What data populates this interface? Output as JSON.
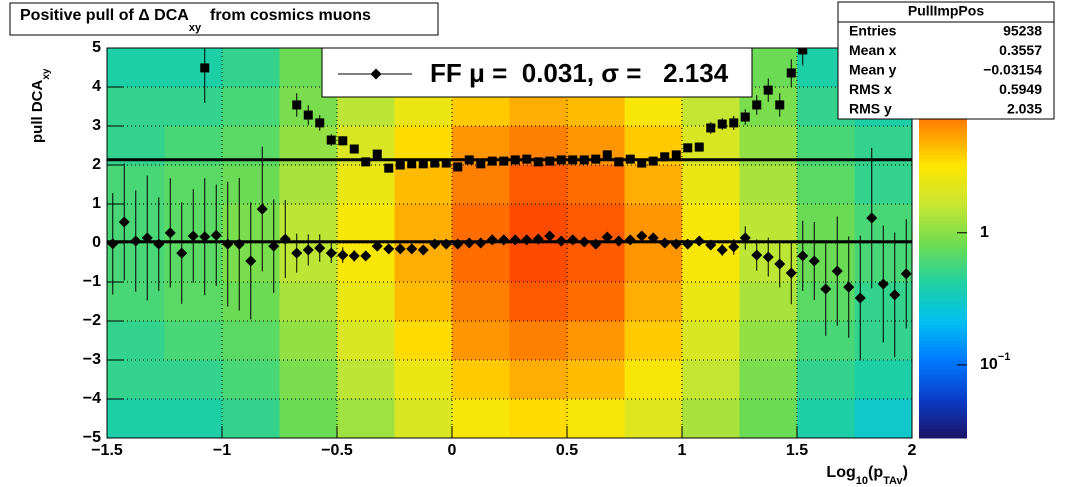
{
  "chart_data": {
    "type": "profile",
    "title": [
      "Positive pull of Δ DCA",
      "xy",
      "  from cosmics muons"
    ],
    "xlabel": [
      "Log",
      "10",
      "(p",
      "TAv",
      ")"
    ],
    "ylabel": [
      "pull DCA",
      "xy"
    ],
    "xlim": [
      -1.5,
      2
    ],
    "ylim": [
      -5,
      5
    ],
    "xticks": [
      {
        "value": -1.5,
        "label": "−1.5"
      },
      {
        "value": -1,
        "label": "−1"
      },
      {
        "value": -0.5,
        "label": "−0.5"
      },
      0,
      0.5,
      1,
      1.5,
      2
    ],
    "yticks": [
      {
        "value": -5,
        "label": "−5"
      },
      {
        "value": -4,
        "label": "−4"
      },
      {
        "value": -3,
        "label": "−3"
      },
      {
        "value": -2,
        "label": "−2"
      },
      {
        "value": -1,
        "label": "−1"
      },
      0,
      1,
      2,
      3,
      4,
      5
    ],
    "grid": true,
    "zlim": [
      0.028,
      25
    ],
    "zlog": true,
    "zticks": [
      {
        "value": 1,
        "label": "1"
      },
      {
        "value": 0.1,
        "label": "10",
        "exponent": "−1"
      }
    ],
    "palette": [
      "#1c1464",
      "#0a3cc8",
      "#0078ff",
      "#00c0f0",
      "#20d0a0",
      "#70dc50",
      "#c8e632",
      "#ffe600",
      "#ff8c00",
      "#ff2800",
      "#b40000"
    ],
    "heatmap": {
      "xbins": [
        -1.5,
        -1.25,
        -1,
        -0.75,
        -0.5,
        -0.25,
        0,
        0.25,
        0.5,
        0.75,
        1,
        1.25,
        1.5,
        1.75,
        2
      ],
      "ybins": [
        -5,
        -4,
        -3,
        -2,
        -1,
        0,
        1,
        2,
        3,
        4,
        5
      ],
      "z": [
        [
          0.4,
          0.4,
          0.5,
          0.8,
          1.2,
          2,
          3,
          3.5,
          3,
          2.2,
          1.3,
          0.8,
          0.4,
          0.3
        ],
        [
          0.5,
          0.5,
          0.6,
          0.9,
          1.5,
          2.5,
          4,
          5,
          4.5,
          3,
          1.6,
          0.9,
          0.5,
          0.4
        ],
        [
          0.5,
          0.6,
          0.7,
          1.1,
          2,
          3.5,
          6,
          7,
          6,
          4,
          2,
          1.1,
          0.6,
          0.5
        ],
        [
          0.6,
          0.7,
          0.8,
          1.3,
          2.5,
          4.5,
          7,
          9,
          8,
          5,
          2.5,
          1.3,
          0.7,
          0.5
        ],
        [
          0.6,
          0.7,
          0.9,
          1.5,
          3,
          5,
          8,
          10,
          9,
          6,
          3,
          1.5,
          0.8,
          0.6
        ],
        [
          0.6,
          0.7,
          0.9,
          1.5,
          3,
          5,
          8,
          10,
          9,
          6,
          3,
          1.5,
          0.8,
          0.6
        ],
        [
          0.6,
          0.7,
          0.8,
          1.3,
          2.5,
          4.5,
          7,
          9,
          8,
          5,
          2.5,
          1.3,
          0.7,
          0.5
        ],
        [
          0.5,
          0.6,
          0.7,
          1.1,
          2,
          3.5,
          6,
          7,
          6,
          4,
          2,
          1.1,
          0.6,
          0.5
        ],
        [
          0.5,
          0.5,
          0.6,
          0.9,
          1.5,
          2.5,
          4,
          5,
          4.5,
          3,
          1.6,
          0.9,
          0.5,
          0.4
        ],
        [
          0.4,
          0.4,
          0.5,
          0.8,
          1.2,
          2,
          3,
          3.5,
          3,
          2.2,
          1.3,
          0.8,
          0.4,
          0.3
        ]
      ]
    },
    "x": [
      -1.475,
      -1.425,
      -1.375,
      -1.325,
      -1.275,
      -1.225,
      -1.175,
      -1.125,
      -1.075,
      -1.025,
      -0.975,
      -0.925,
      -0.875,
      -0.825,
      -0.775,
      -0.725,
      -0.675,
      -0.625,
      -0.575,
      -0.525,
      -0.475,
      -0.425,
      -0.375,
      -0.325,
      -0.275,
      -0.225,
      -0.175,
      -0.125,
      -0.075,
      -0.025,
      0.025,
      0.075,
      0.125,
      0.175,
      0.225,
      0.275,
      0.325,
      0.375,
      0.425,
      0.475,
      0.525,
      0.575,
      0.625,
      0.675,
      0.725,
      0.775,
      0.825,
      0.875,
      0.925,
      0.975,
      1.025,
      1.075,
      1.125,
      1.175,
      1.225,
      1.275,
      1.325,
      1.375,
      1.425,
      1.475,
      1.525,
      1.575,
      1.625,
      1.675,
      1.725,
      1.775,
      1.825,
      1.875,
      1.925,
      1.975
    ],
    "series": [
      {
        "name": "FF μ =  0.031, σ =   2.134",
        "color": "#000000",
        "marker": "diamond",
        "values": [
          -0.02,
          0.54,
          0.05,
          0.13,
          -0.03,
          0.26,
          -0.26,
          0.18,
          0.16,
          0.2,
          -0.03,
          -0.03,
          -0.46,
          0.87,
          -0.08,
          0.1,
          -0.26,
          -0.18,
          -0.13,
          -0.26,
          -0.31,
          -0.33,
          -0.33,
          -0.08,
          -0.15,
          -0.15,
          -0.15,
          -0.18,
          -0.03,
          -0.03,
          -0.03,
          0,
          0,
          0.08,
          0.08,
          0.08,
          0.08,
          0.1,
          0.18,
          0.05,
          0.08,
          0.03,
          -0.03,
          0.15,
          0.05,
          0.08,
          0.18,
          0.13,
          0,
          -0.03,
          -0.03,
          0.05,
          -0.05,
          -0.18,
          -0.1,
          0.13,
          -0.31,
          -0.36,
          -0.54,
          -0.77,
          -0.33,
          -0.46,
          -1.18,
          -0.72,
          -1.13,
          -1.41,
          0.64,
          -1.05,
          -1.33,
          -0.79
        ],
        "errors": [
          1.3,
          1.5,
          1.3,
          1.6,
          1.2,
          1.4,
          1.3,
          1.2,
          1.5,
          1.3,
          1.6,
          1.7,
          1.5,
          1.6,
          1.2,
          1,
          0.5,
          0.4,
          0.35,
          0.25,
          0.2,
          0.15,
          0.12,
          0.1,
          0.1,
          0.1,
          0.1,
          0.1,
          0.1,
          0.1,
          0.05,
          0.05,
          0.05,
          0.05,
          0.05,
          0.05,
          0.05,
          0.05,
          0.05,
          0.05,
          0.05,
          0.05,
          0.05,
          0.05,
          0.05,
          0.05,
          0.08,
          0.08,
          0.08,
          0.08,
          0.08,
          0.08,
          0.08,
          0.15,
          0.2,
          0.3,
          0.4,
          0.5,
          0.6,
          0.8,
          0.9,
          1,
          1.2,
          1.4,
          1.3,
          1.6,
          1.8,
          1.5,
          1.6,
          1.4
        ]
      },
      {
        "color": "#000000",
        "marker": "square",
        "values": [
          null,
          null,
          null,
          null,
          null,
          null,
          null,
          null,
          4.49,
          null,
          null,
          null,
          null,
          null,
          null,
          null,
          3.54,
          3.28,
          3.08,
          2.64,
          2.62,
          2.41,
          2.08,
          2.28,
          1.92,
          2,
          2.03,
          2.03,
          2.05,
          2.05,
          1.95,
          2.13,
          2.03,
          2.1,
          2.1,
          2.13,
          2.15,
          2.08,
          2.1,
          2.13,
          2.13,
          2.13,
          2.15,
          2.26,
          2.08,
          2.15,
          2.05,
          2.1,
          2.21,
          2.26,
          2.44,
          2.46,
          2.95,
          3.05,
          3.08,
          3.23,
          3.54,
          3.92,
          3.54,
          4.36,
          4.95,
          null,
          null,
          null,
          null,
          null,
          null,
          null,
          null,
          null
        ],
        "errors": [
          null,
          null,
          null,
          null,
          null,
          null,
          null,
          null,
          0.9,
          null,
          null,
          null,
          null,
          null,
          null,
          null,
          0.3,
          0.25,
          0.2,
          0.15,
          0.12,
          0.1,
          0.08,
          0.06,
          0.06,
          0.06,
          0.06,
          0.06,
          0.06,
          0.06,
          0.06,
          0.06,
          0.06,
          0.06,
          0.06,
          0.06,
          0.06,
          0.06,
          0.06,
          0.06,
          0.06,
          0.06,
          0.06,
          0.06,
          0.06,
          0.06,
          0.06,
          0.06,
          0.06,
          0.1,
          0.1,
          0.12,
          0.15,
          0.15,
          0.18,
          0.2,
          0.25,
          0.3,
          0.3,
          0.35,
          0.4,
          null,
          null,
          null,
          null,
          null,
          null,
          null,
          null,
          null
        ]
      }
    ],
    "fit_lines": [
      0.031,
      2.134
    ],
    "stats": {
      "title": "PullImpPos",
      "rows": [
        [
          "Entries",
          "95238"
        ],
        [
          "Mean x",
          "0.3557"
        ],
        [
          "Mean y",
          "−0.03154"
        ],
        [
          "RMS x",
          "0.5949"
        ],
        [
          "RMS y",
          "2.035"
        ]
      ]
    }
  }
}
